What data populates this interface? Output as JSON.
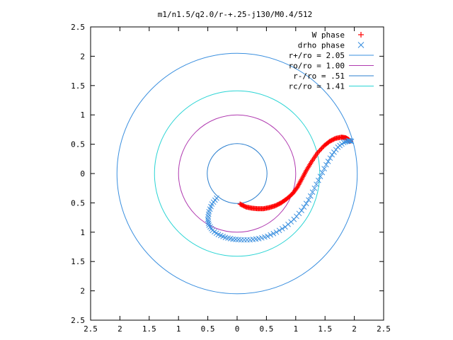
{
  "chart_data": {
    "type": "scatter",
    "title": "m1/n1.5/q2.0/r-+.25-j130/M0.4/512",
    "xlim": [
      -2.5,
      2.5
    ],
    "ylim": [
      -2.5,
      2.5
    ],
    "xticks": [
      -2.5,
      -2,
      -1.5,
      -1,
      -0.5,
      0,
      0.5,
      1,
      1.5,
      2,
      2.5
    ],
    "yticks": [
      -2.5,
      -2,
      -1.5,
      -1,
      -0.5,
      0,
      0.5,
      1,
      1.5,
      2,
      2.5
    ],
    "xtick_labels": [
      "2.5",
      "2",
      "1.5",
      "1",
      "0.5",
      "0",
      "0.5",
      "1",
      "1.5",
      "2",
      "2.5"
    ],
    "ytick_labels": [
      "2.5",
      "2",
      "1.5",
      "1",
      "0.5",
      "0",
      "0.5",
      "1",
      "1.5",
      "2",
      "2.5"
    ],
    "legend_position": "top-right",
    "grid": false,
    "series": [
      {
        "name": "W phase",
        "marker": "+",
        "color": "#ff0000",
        "points": [
          [
            0.05,
            -0.52
          ],
          [
            0.15,
            -0.57
          ],
          [
            0.25,
            -0.59
          ],
          [
            0.35,
            -0.6
          ],
          [
            0.45,
            -0.6
          ],
          [
            0.55,
            -0.58
          ],
          [
            0.65,
            -0.55
          ],
          [
            0.75,
            -0.5
          ],
          [
            0.85,
            -0.43
          ],
          [
            0.95,
            -0.34
          ],
          [
            1.03,
            -0.23
          ],
          [
            1.1,
            -0.1
          ],
          [
            1.18,
            0.05
          ],
          [
            1.27,
            0.2
          ],
          [
            1.37,
            0.35
          ],
          [
            1.48,
            0.47
          ],
          [
            1.58,
            0.55
          ],
          [
            1.68,
            0.6
          ],
          [
            1.78,
            0.62
          ],
          [
            1.85,
            0.61
          ],
          [
            1.9,
            0.58
          ],
          [
            1.93,
            0.55
          ]
        ]
      },
      {
        "name": "drho phase",
        "marker": "x",
        "color": "#3a8fdf",
        "points": [
          [
            -0.35,
            -0.42
          ],
          [
            -0.43,
            -0.52
          ],
          [
            -0.48,
            -0.65
          ],
          [
            -0.5,
            -0.78
          ],
          [
            -0.48,
            -0.88
          ],
          [
            -0.42,
            -0.97
          ],
          [
            -0.32,
            -1.04
          ],
          [
            -0.2,
            -1.09
          ],
          [
            -0.07,
            -1.12
          ],
          [
            0.07,
            -1.13
          ],
          [
            0.22,
            -1.13
          ],
          [
            0.37,
            -1.11
          ],
          [
            0.52,
            -1.07
          ],
          [
            0.67,
            -1.0
          ],
          [
            0.82,
            -0.91
          ],
          [
            0.97,
            -0.78
          ],
          [
            1.1,
            -0.63
          ],
          [
            1.22,
            -0.45
          ],
          [
            1.32,
            -0.25
          ],
          [
            1.42,
            -0.05
          ],
          [
            1.52,
            0.15
          ],
          [
            1.62,
            0.32
          ],
          [
            1.72,
            0.45
          ],
          [
            1.82,
            0.53
          ],
          [
            1.9,
            0.56
          ],
          [
            1.95,
            0.55
          ]
        ]
      },
      {
        "name": "r+/ro = 2.05",
        "kind": "circle",
        "radius": 2.05,
        "color": "#3a8fdf"
      },
      {
        "name": "ro/ro = 1.00",
        "kind": "circle",
        "radius": 1.0,
        "color": "#b03ab0"
      },
      {
        "name": "r-/ro = .51",
        "kind": "circle",
        "radius": 0.51,
        "color": "#2b7fcf"
      },
      {
        "name": "rc/ro = 1.41",
        "kind": "circle",
        "radius": 1.41,
        "color": "#2ad4d4"
      }
    ]
  }
}
